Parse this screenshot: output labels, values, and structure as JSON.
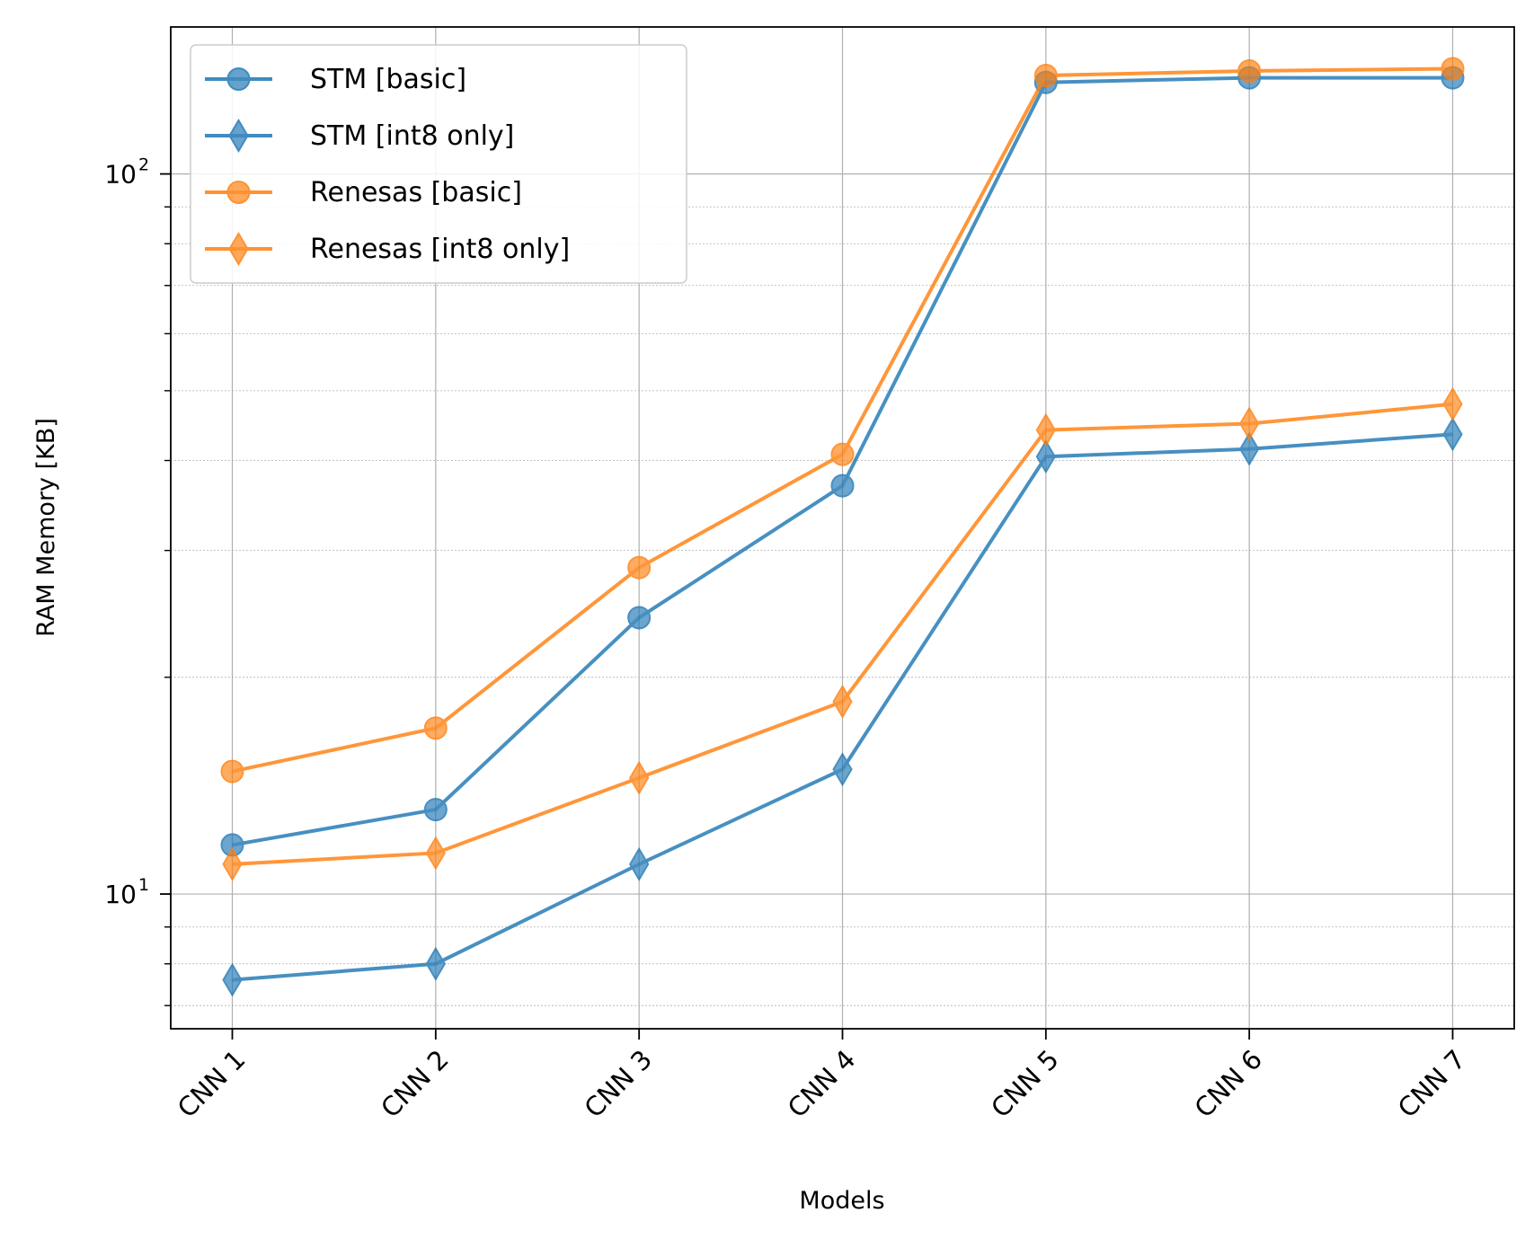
{
  "chart_data": {
    "type": "line",
    "title": "",
    "xlabel": "Models",
    "ylabel": "RAM Memory [KB]",
    "yscale": "log",
    "ylim": [
      6.5,
      160
    ],
    "grid": true,
    "legend_position": "top-left",
    "categories": [
      "CNN 1",
      "CNN 2",
      "CNN 3",
      "CNN 4",
      "CNN 5",
      "CNN 6",
      "CNN 7"
    ],
    "y_tick_labels": [
      {
        "value": 10,
        "base": "10",
        "exp": "1"
      },
      {
        "value": 100,
        "base": "10",
        "exp": "2"
      }
    ],
    "series": [
      {
        "name": "STM [basic]",
        "marker": "circle",
        "color": "#1f77b4",
        "values": [
          11.7,
          13.1,
          24.2,
          36.9,
          134,
          136,
          136
        ]
      },
      {
        "name": "STM [int8 only]",
        "marker": "diamond",
        "color": "#1f77b4",
        "values": [
          7.6,
          8.0,
          11.0,
          14.9,
          40.5,
          41.5,
          43.5
        ]
      },
      {
        "name": "Renesas [basic]",
        "marker": "circle",
        "color": "#ff7f0e",
        "values": [
          14.8,
          17.0,
          28.4,
          40.8,
          137,
          139,
          140
        ]
      },
      {
        "name": "Renesas [int8 only]",
        "marker": "diamond",
        "color": "#ff7f0e",
        "values": [
          11.0,
          11.4,
          14.5,
          18.5,
          44.1,
          45.0,
          47.9
        ]
      }
    ]
  }
}
